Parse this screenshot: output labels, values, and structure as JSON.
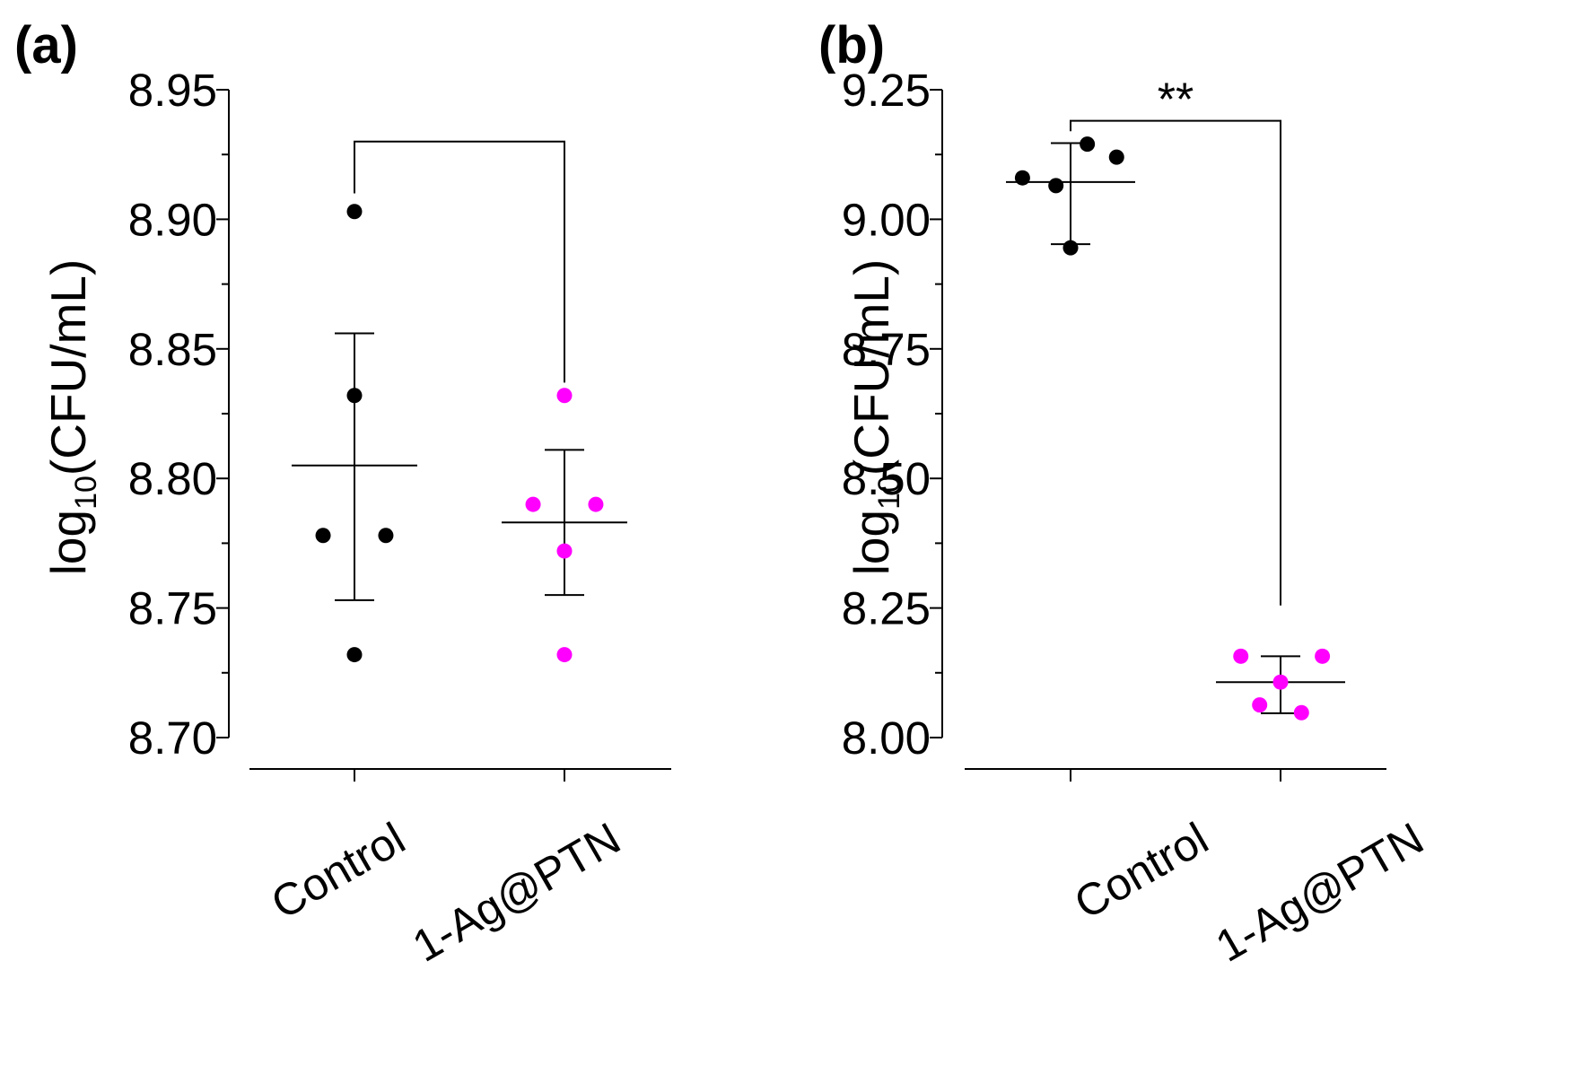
{
  "chart_data": [
    {
      "type": "scatter",
      "panel": "(a)",
      "ylabel_main": "log",
      "ylabel_sub": "10",
      "ylabel_tail": "(CFU/mL)",
      "ylim": [
        8.7,
        8.95
      ],
      "yticks": [
        8.7,
        8.75,
        8.8,
        8.85,
        8.9,
        8.95
      ],
      "ytick_labels": [
        "8.70",
        "8.75",
        "8.80",
        "8.85",
        "8.90",
        "8.95"
      ],
      "categories": [
        "Control",
        "1-Ag@PTN"
      ],
      "series": [
        {
          "name": "Control",
          "color": "#000000",
          "points": [
            [
              0,
              8.903
            ],
            [
              0,
              8.832
            ],
            [
              -0.15,
              8.778
            ],
            [
              0.15,
              8.778
            ],
            [
              0,
              8.732
            ]
          ],
          "mean": 8.805,
          "upper": 8.856,
          "lower": 8.753
        },
        {
          "name": "1-Ag@PTN",
          "color": "#ff00ff",
          "points": [
            [
              0,
              8.832
            ],
            [
              -0.15,
              8.79
            ],
            [
              0.15,
              8.79
            ],
            [
              0,
              8.772
            ],
            [
              0,
              8.732
            ]
          ],
          "mean": 8.783,
          "upper": 8.811,
          "lower": 8.755
        }
      ],
      "bracket": {
        "y": 8.93,
        "from": 0,
        "to": 1,
        "left_drop_to": 8.91,
        "right_drop_to": 8.837,
        "label": ""
      }
    },
    {
      "type": "scatter",
      "panel": "(b)",
      "ylabel_main": "log",
      "ylabel_sub": "10",
      "ylabel_tail": "(CFU/mL)",
      "ylim": [
        8.0,
        9.25
      ],
      "yticks": [
        8.0,
        8.25,
        8.5,
        8.75,
        9.0,
        9.25
      ],
      "ytick_labels": [
        "8.00",
        "8.25",
        "8.50",
        "8.75",
        "9.00",
        "9.25"
      ],
      "categories": [
        "Control",
        "1-Ag@PTN"
      ],
      "series": [
        {
          "name": "Control",
          "color": "#000000",
          "points": [
            [
              -0.23,
              9.08
            ],
            [
              -0.07,
              9.065
            ],
            [
              0.08,
              9.145
            ],
            [
              0.22,
              9.12
            ],
            [
              0,
              8.945
            ]
          ],
          "mean": 9.072,
          "upper": 9.147,
          "lower": 8.952
        },
        {
          "name": "1-Ag@PTN",
          "color": "#ff00ff",
          "points": [
            [
              -0.19,
              8.157
            ],
            [
              0.2,
              8.157
            ],
            [
              0,
              8.107
            ],
            [
              -0.1,
              8.063
            ],
            [
              0.1,
              8.048
            ]
          ],
          "mean": 8.107,
          "upper": 8.157,
          "lower": 8.047
        }
      ],
      "bracket": {
        "y": 9.19,
        "from": 0,
        "to": 1,
        "left_drop_to": 9.17,
        "right_drop_to": 8.255,
        "label": "**"
      }
    }
  ]
}
